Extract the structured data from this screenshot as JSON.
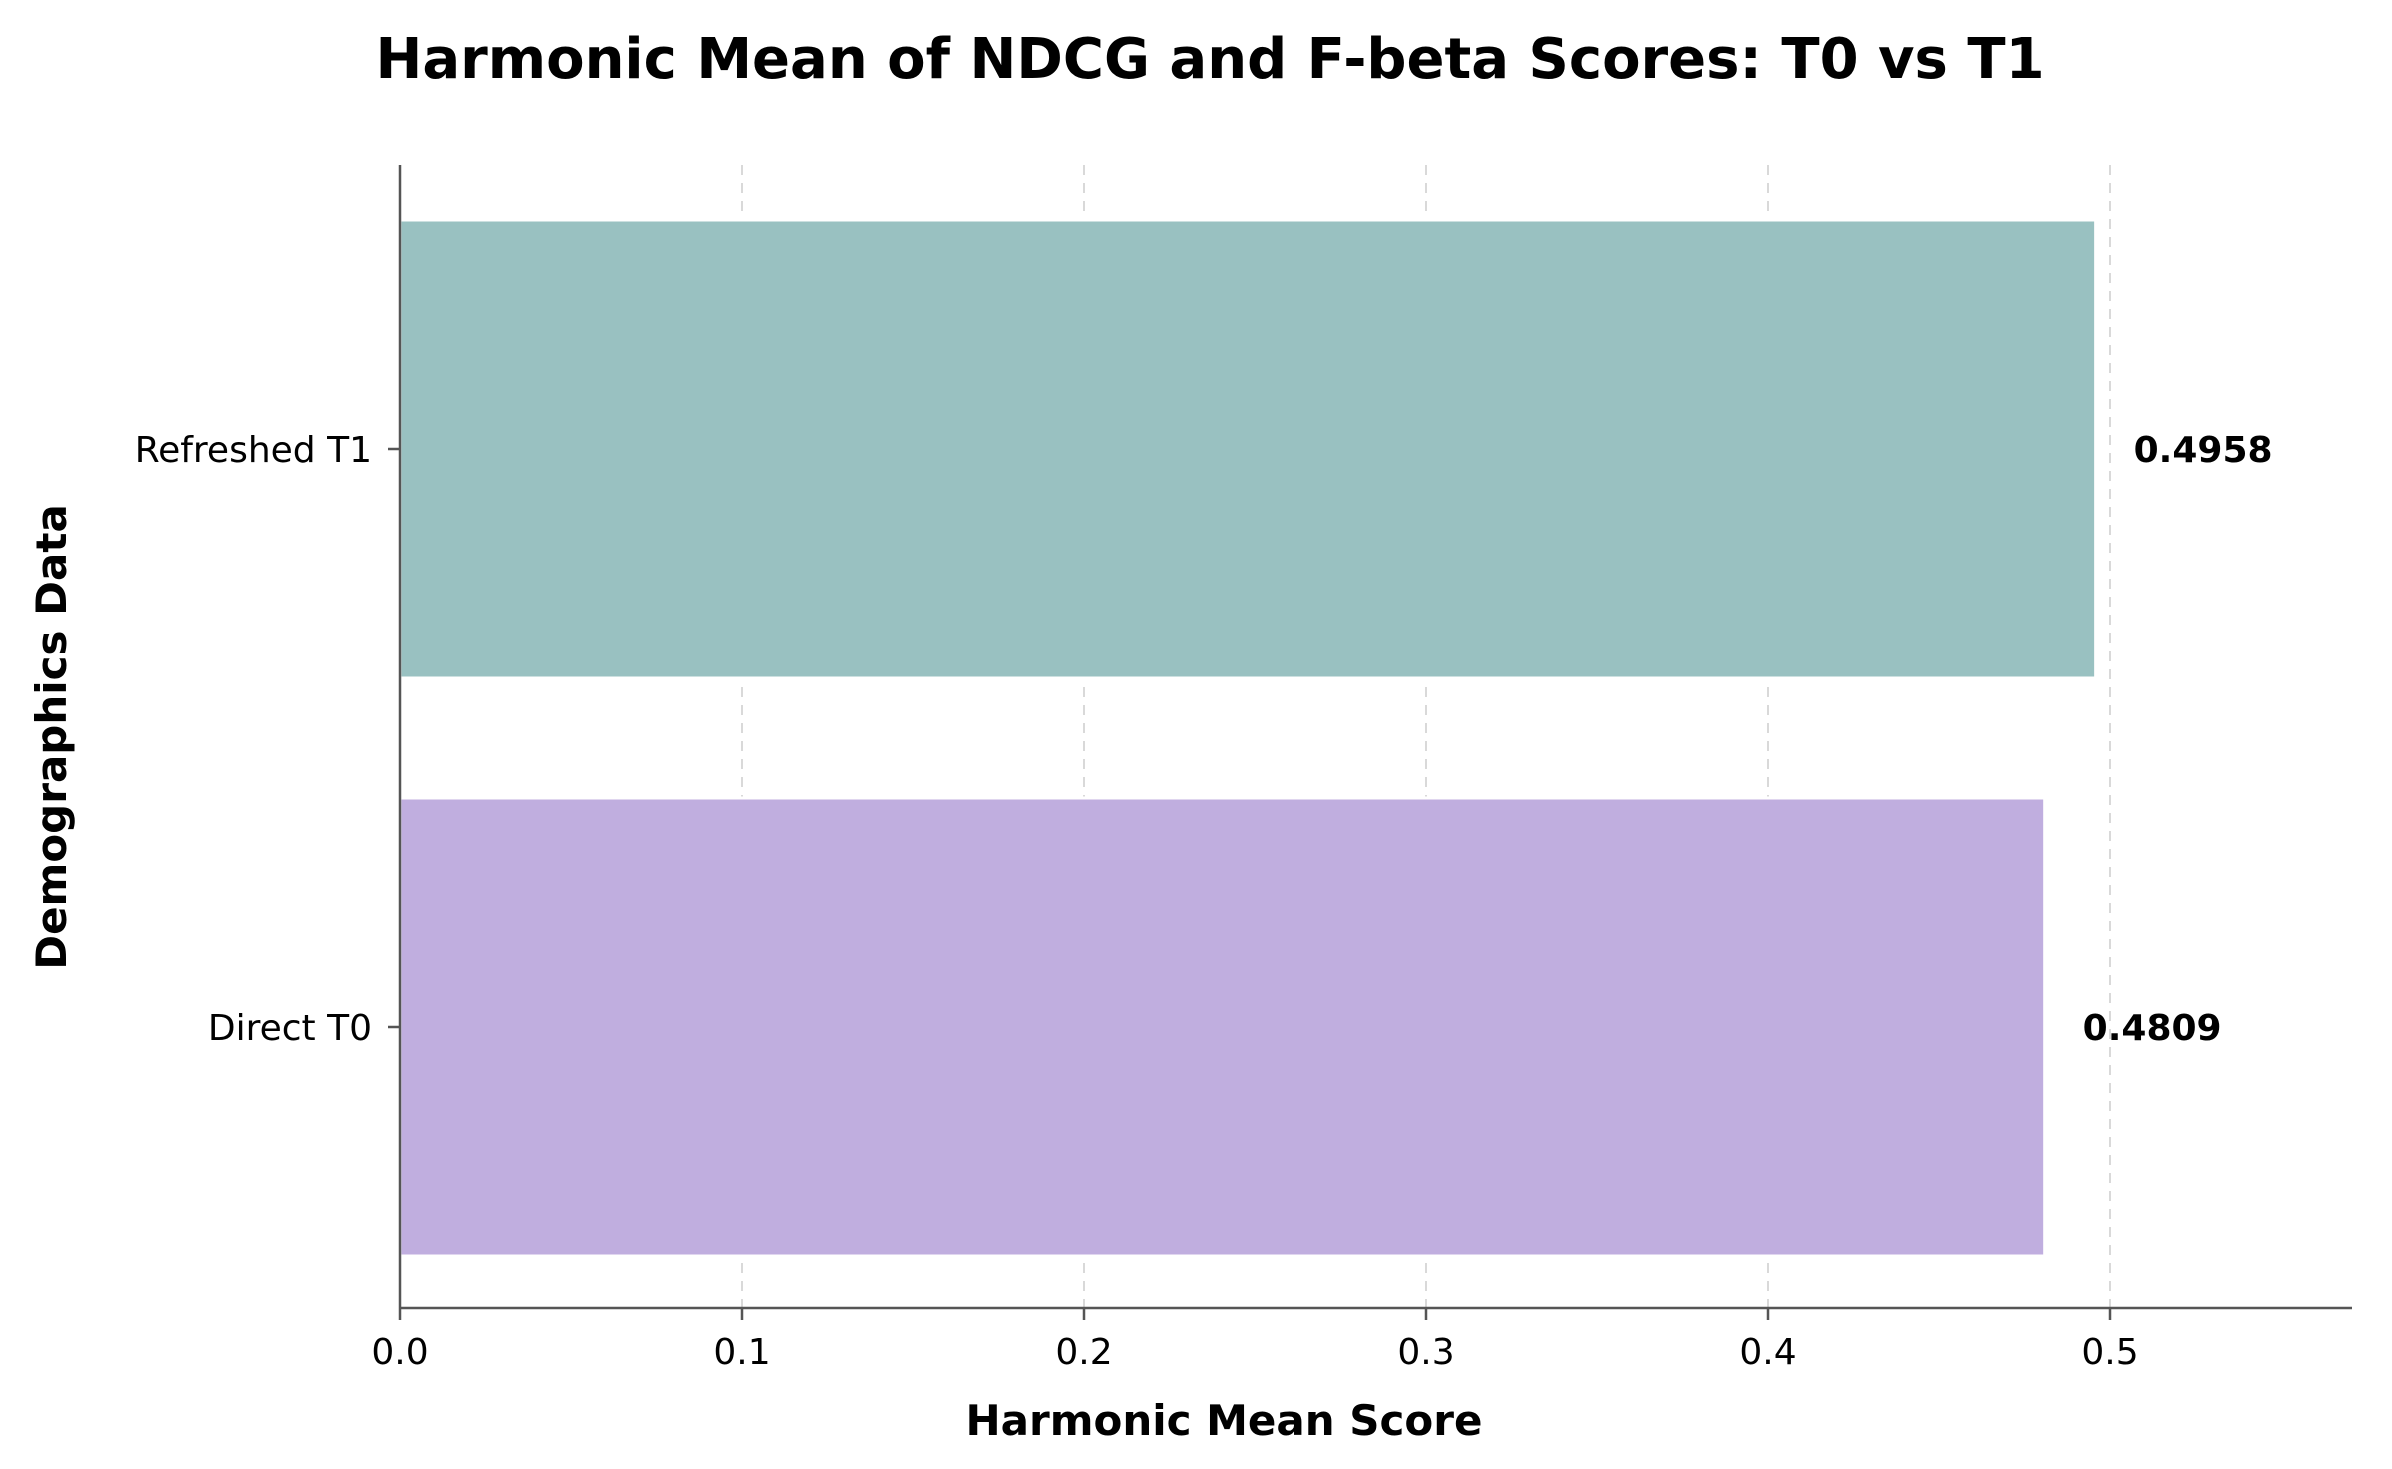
{
  "chart_data": {
    "type": "bar",
    "orientation": "horizontal",
    "title": "Harmonic Mean of NDCG and F-beta Scores: T0 vs T1",
    "xlabel": "Harmonic Mean Score",
    "ylabel": "Demographics Data",
    "categories": [
      "Direct T0",
      "Refreshed T1"
    ],
    "values": [
      0.4809,
      0.4958
    ],
    "value_labels": [
      "0.4809",
      "0.4958"
    ],
    "colors": [
      "#c0aedf",
      "#99c1c1"
    ],
    "xlim": [
      0,
      0.57
    ],
    "xticks": [
      0.0,
      0.1,
      0.2,
      0.3,
      0.4,
      0.5
    ],
    "xtick_labels": [
      "0.0",
      "0.1",
      "0.2",
      "0.3",
      "0.4",
      "0.5"
    ],
    "grid": "x-dashed",
    "legend": "none"
  }
}
